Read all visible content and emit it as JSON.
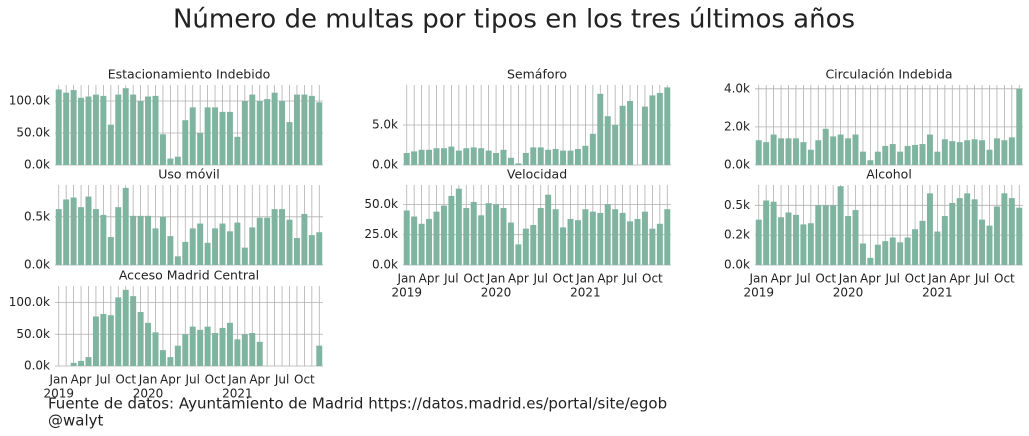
{
  "title": "Número de multas por tipos en los tres últimos años",
  "source": "Fuente de datos: Ayuntamiento de Madrid https://datos.madrid.es/portal/site/egob",
  "credit": "@walyt",
  "chart_data": [
    {
      "type": "bar",
      "title": "Estacionamiento Indebido",
      "color": "#7fb4a1",
      "grid": true,
      "categories": [
        "2019-01",
        "2019-02",
        "2019-03",
        "2019-04",
        "2019-05",
        "2019-06",
        "2019-07",
        "2019-08",
        "2019-09",
        "2019-10",
        "2019-11",
        "2019-12",
        "2020-01",
        "2020-02",
        "2020-03",
        "2020-04",
        "2020-05",
        "2020-06",
        "2020-07",
        "2020-08",
        "2020-09",
        "2020-10",
        "2020-11",
        "2020-12",
        "2021-01",
        "2021-02",
        "2021-03",
        "2021-04",
        "2021-05",
        "2021-06",
        "2021-07",
        "2021-08",
        "2021-09",
        "2021-10",
        "2021-11",
        "2021-12"
      ],
      "values": [
        118000,
        113000,
        117000,
        105000,
        107000,
        110000,
        108000,
        63000,
        110000,
        120000,
        110000,
        100000,
        107000,
        108000,
        48000,
        10000,
        13000,
        70000,
        90000,
        50000,
        90000,
        90000,
        83000,
        83000,
        44000,
        100000,
        110000,
        100000,
        103000,
        113000,
        100000,
        67000,
        110000,
        110000,
        108000,
        98000
      ],
      "ylim": [
        0,
        125000
      ],
      "yticks": [
        {
          "value": 0,
          "label": "0.0k"
        },
        {
          "value": 50000,
          "label": "50.0k"
        },
        {
          "value": 100000,
          "label": "100.0k"
        }
      ]
    },
    {
      "type": "bar",
      "title": "Uso móvil",
      "color": "#7fb4a1",
      "grid": true,
      "categories": [
        "2019-01",
        "2019-02",
        "2019-03",
        "2019-04",
        "2019-05",
        "2019-06",
        "2019-07",
        "2019-08",
        "2019-09",
        "2019-10",
        "2019-11",
        "2019-12",
        "2020-01",
        "2020-02",
        "2020-03",
        "2020-04",
        "2020-05",
        "2020-06",
        "2020-07",
        "2020-08",
        "2020-09",
        "2020-10",
        "2020-11",
        "2020-12",
        "2021-01",
        "2021-02",
        "2021-03",
        "2021-04",
        "2021-05",
        "2021-06",
        "2021-07",
        "2021-08",
        "2021-09",
        "2021-10",
        "2021-11",
        "2021-12"
      ],
      "values": [
        580,
        680,
        700,
        600,
        710,
        580,
        520,
        290,
        600,
        800,
        510,
        510,
        510,
        380,
        500,
        300,
        90,
        240,
        380,
        430,
        230,
        380,
        430,
        350,
        440,
        180,
        390,
        490,
        490,
        580,
        580,
        470,
        280,
        530,
        310,
        340
      ],
      "ylim": [
        0,
        830
      ],
      "yticks": [
        {
          "value": 0,
          "label": "0.0k"
        },
        {
          "value": 500,
          "label": "0.5k"
        }
      ]
    },
    {
      "type": "bar",
      "title": "Acceso Madrid Central",
      "color": "#7fb4a1",
      "grid": true,
      "categories": [
        "2019-01",
        "2019-02",
        "2019-03",
        "2019-04",
        "2019-05",
        "2019-06",
        "2019-07",
        "2019-08",
        "2019-09",
        "2019-10",
        "2019-11",
        "2019-12",
        "2020-01",
        "2020-02",
        "2020-03",
        "2020-04",
        "2020-05",
        "2020-06",
        "2020-07",
        "2020-08",
        "2020-09",
        "2020-10",
        "2020-11",
        "2020-12",
        "2021-01",
        "2021-02",
        "2021-03",
        "2021-04",
        "2021-05",
        "2021-06",
        "2021-07",
        "2021-08",
        "2021-09",
        "2021-10",
        "2021-11",
        "2021-12"
      ],
      "values": [
        0,
        0,
        5000,
        8000,
        14000,
        78000,
        82000,
        80000,
        108000,
        120000,
        110000,
        85000,
        68000,
        53000,
        25000,
        14000,
        32000,
        50000,
        62000,
        57000,
        62000,
        52000,
        60000,
        68000,
        42000,
        50000,
        52000,
        38000,
        0,
        0,
        0,
        0,
        0,
        0,
        0,
        32000
      ],
      "ylim": [
        0,
        126000
      ],
      "yticks": [
        {
          "value": 0,
          "label": "0.0k"
        },
        {
          "value": 50000,
          "label": "50.0k"
        },
        {
          "value": 100000,
          "label": "100.0k"
        }
      ],
      "xticks": [
        {
          "value": "2019-01",
          "label": "Jan",
          "sublabel": "2019"
        },
        {
          "value": "2019-04",
          "label": "Apr"
        },
        {
          "value": "2019-07",
          "label": "Jul"
        },
        {
          "value": "2019-10",
          "label": "Oct"
        },
        {
          "value": "2020-01",
          "label": "Jan",
          "sublabel": "2020"
        },
        {
          "value": "2020-04",
          "label": "Apr"
        },
        {
          "value": "2020-07",
          "label": "Jul"
        },
        {
          "value": "2020-10",
          "label": "Oct"
        },
        {
          "value": "2021-01",
          "label": "Jan",
          "sublabel": "2021"
        },
        {
          "value": "2021-04",
          "label": "Apr"
        },
        {
          "value": "2021-07",
          "label": "Jul"
        },
        {
          "value": "2021-10",
          "label": "Oct"
        }
      ]
    },
    {
      "type": "bar",
      "title": "Semáforo",
      "color": "#7fb4a1",
      "grid": true,
      "categories": [
        "2019-01",
        "2019-02",
        "2019-03",
        "2019-04",
        "2019-05",
        "2019-06",
        "2019-07",
        "2019-08",
        "2019-09",
        "2019-10",
        "2019-11",
        "2019-12",
        "2020-01",
        "2020-02",
        "2020-03",
        "2020-04",
        "2020-05",
        "2020-06",
        "2020-07",
        "2020-08",
        "2020-09",
        "2020-10",
        "2020-11",
        "2020-12",
        "2021-01",
        "2021-02",
        "2021-03",
        "2021-04",
        "2021-05",
        "2021-06",
        "2021-07",
        "2021-08",
        "2021-09",
        "2021-10",
        "2021-11",
        "2021-12"
      ],
      "values": [
        1500,
        1700,
        1900,
        1900,
        2100,
        2100,
        2300,
        1800,
        2100,
        2200,
        2100,
        1800,
        1500,
        1900,
        900,
        200,
        1500,
        2200,
        2200,
        1900,
        2000,
        1800,
        1800,
        2000,
        2400,
        3900,
        8900,
        6100,
        5000,
        7400,
        8000,
        0,
        7300,
        8700,
        9000,
        9700
      ],
      "ylim": [
        0,
        10000
      ],
      "yticks": [
        {
          "value": 0,
          "label": "0.0k"
        },
        {
          "value": 5000,
          "label": "5.0k"
        }
      ]
    },
    {
      "type": "bar",
      "title": "Velocidad",
      "color": "#7fb4a1",
      "grid": true,
      "categories": [
        "2019-01",
        "2019-02",
        "2019-03",
        "2019-04",
        "2019-05",
        "2019-06",
        "2019-07",
        "2019-08",
        "2019-09",
        "2019-10",
        "2019-11",
        "2019-12",
        "2020-01",
        "2020-02",
        "2020-03",
        "2020-04",
        "2020-05",
        "2020-06",
        "2020-07",
        "2020-08",
        "2020-09",
        "2020-10",
        "2020-11",
        "2020-12",
        "2021-01",
        "2021-02",
        "2021-03",
        "2021-04",
        "2021-05",
        "2021-06",
        "2021-07",
        "2021-08",
        "2021-09",
        "2021-10",
        "2021-11",
        "2021-12"
      ],
      "values": [
        45000,
        40000,
        34000,
        38000,
        44000,
        49000,
        57000,
        63000,
        47000,
        52000,
        41000,
        51000,
        50000,
        47000,
        35000,
        17000,
        30000,
        33000,
        47000,
        58000,
        46000,
        31000,
        38000,
        37000,
        46000,
        44000,
        43000,
        50000,
        46000,
        43000,
        36000,
        38000,
        44000,
        30000,
        34000,
        46000
      ],
      "ylim": [
        0,
        66000
      ],
      "yticks": [
        {
          "value": 0,
          "label": "0.0k"
        },
        {
          "value": 25000,
          "label": "25.0k"
        },
        {
          "value": 50000,
          "label": "50.0k"
        }
      ],
      "xticks": [
        {
          "value": "2019-01",
          "label": "Jan",
          "sublabel": "2019"
        },
        {
          "value": "2019-04",
          "label": "Apr"
        },
        {
          "value": "2019-07",
          "label": "Jul"
        },
        {
          "value": "2019-10",
          "label": "Oct"
        },
        {
          "value": "2020-01",
          "label": "Jan",
          "sublabel": "2020"
        },
        {
          "value": "2020-04",
          "label": "Apr"
        },
        {
          "value": "2020-07",
          "label": "Jul"
        },
        {
          "value": "2020-10",
          "label": "Oct"
        },
        {
          "value": "2021-01",
          "label": "Jan",
          "sublabel": "2021"
        },
        {
          "value": "2021-04",
          "label": "Apr"
        },
        {
          "value": "2021-07",
          "label": "Jul"
        },
        {
          "value": "2021-10",
          "label": "Oct"
        }
      ]
    },
    {
      "type": "bar",
      "title": "Circulación Indebida",
      "color": "#7fb4a1",
      "grid": true,
      "categories": [
        "2019-01",
        "2019-02",
        "2019-03",
        "2019-04",
        "2019-05",
        "2019-06",
        "2019-07",
        "2019-08",
        "2019-09",
        "2019-10",
        "2019-11",
        "2019-12",
        "2020-01",
        "2020-02",
        "2020-03",
        "2020-04",
        "2020-05",
        "2020-06",
        "2020-07",
        "2020-08",
        "2020-09",
        "2020-10",
        "2020-11",
        "2020-12",
        "2021-01",
        "2021-02",
        "2021-03",
        "2021-04",
        "2021-05",
        "2021-06",
        "2021-07",
        "2021-08",
        "2021-09",
        "2021-10",
        "2021-11",
        "2021-12"
      ],
      "values": [
        1300,
        1200,
        1600,
        1400,
        1400,
        1400,
        1200,
        800,
        1300,
        1900,
        1500,
        1600,
        1400,
        1600,
        700,
        250,
        700,
        1000,
        1100,
        700,
        1000,
        1050,
        1100,
        1600,
        700,
        1350,
        1250,
        1200,
        1300,
        1350,
        1300,
        800,
        1400,
        1300,
        1450,
        4000
      ],
      "ylim": [
        0,
        4200
      ],
      "yticks": [
        {
          "value": 0,
          "label": "0.0k"
        },
        {
          "value": 2000,
          "label": "2.0k"
        },
        {
          "value": 4000,
          "label": "4.0k"
        }
      ]
    },
    {
      "type": "bar",
      "title": "Alcohol",
      "color": "#7fb4a1",
      "grid": true,
      "categories": [
        "2019-01",
        "2019-02",
        "2019-03",
        "2019-04",
        "2019-05",
        "2019-06",
        "2019-07",
        "2019-08",
        "2019-09",
        "2019-10",
        "2019-11",
        "2019-12",
        "2020-01",
        "2020-02",
        "2020-03",
        "2020-04",
        "2020-05",
        "2020-06",
        "2020-07",
        "2020-08",
        "2020-09",
        "2020-10",
        "2020-11",
        "2020-12",
        "2021-01",
        "2021-02",
        "2021-03",
        "2021-04",
        "2021-05",
        "2021-06",
        "2021-07",
        "2021-08",
        "2021-09",
        "2021-10",
        "2021-11",
        "2021-12"
      ],
      "values": [
        380,
        540,
        530,
        400,
        440,
        420,
        340,
        350,
        500,
        500,
        500,
        660,
        410,
        460,
        180,
        60,
        170,
        200,
        230,
        190,
        230,
        300,
        370,
        600,
        280,
        410,
        520,
        560,
        600,
        550,
        380,
        330,
        490,
        600,
        560,
        480
      ],
      "ylim": [
        0,
        670
      ],
      "yticks": [
        {
          "value": 0,
          "label": "0.0k"
        },
        {
          "value": 250,
          "label": "0.2k"
        },
        {
          "value": 500,
          "label": "0.5k"
        }
      ],
      "xticks": [
        {
          "value": "2019-01",
          "label": "Jan",
          "sublabel": "2019"
        },
        {
          "value": "2019-04",
          "label": "Apr"
        },
        {
          "value": "2019-07",
          "label": "Jul"
        },
        {
          "value": "2019-10",
          "label": "Oct"
        },
        {
          "value": "2020-01",
          "label": "Jan",
          "sublabel": "2020"
        },
        {
          "value": "2020-04",
          "label": "Apr"
        },
        {
          "value": "2020-07",
          "label": "Jul"
        },
        {
          "value": "2020-10",
          "label": "Oct"
        },
        {
          "value": "2021-01",
          "label": "Jan",
          "sublabel": "2021"
        },
        {
          "value": "2021-04",
          "label": "Apr"
        },
        {
          "value": "2021-07",
          "label": "Jul"
        },
        {
          "value": "2021-10",
          "label": "Oct"
        }
      ]
    }
  ]
}
